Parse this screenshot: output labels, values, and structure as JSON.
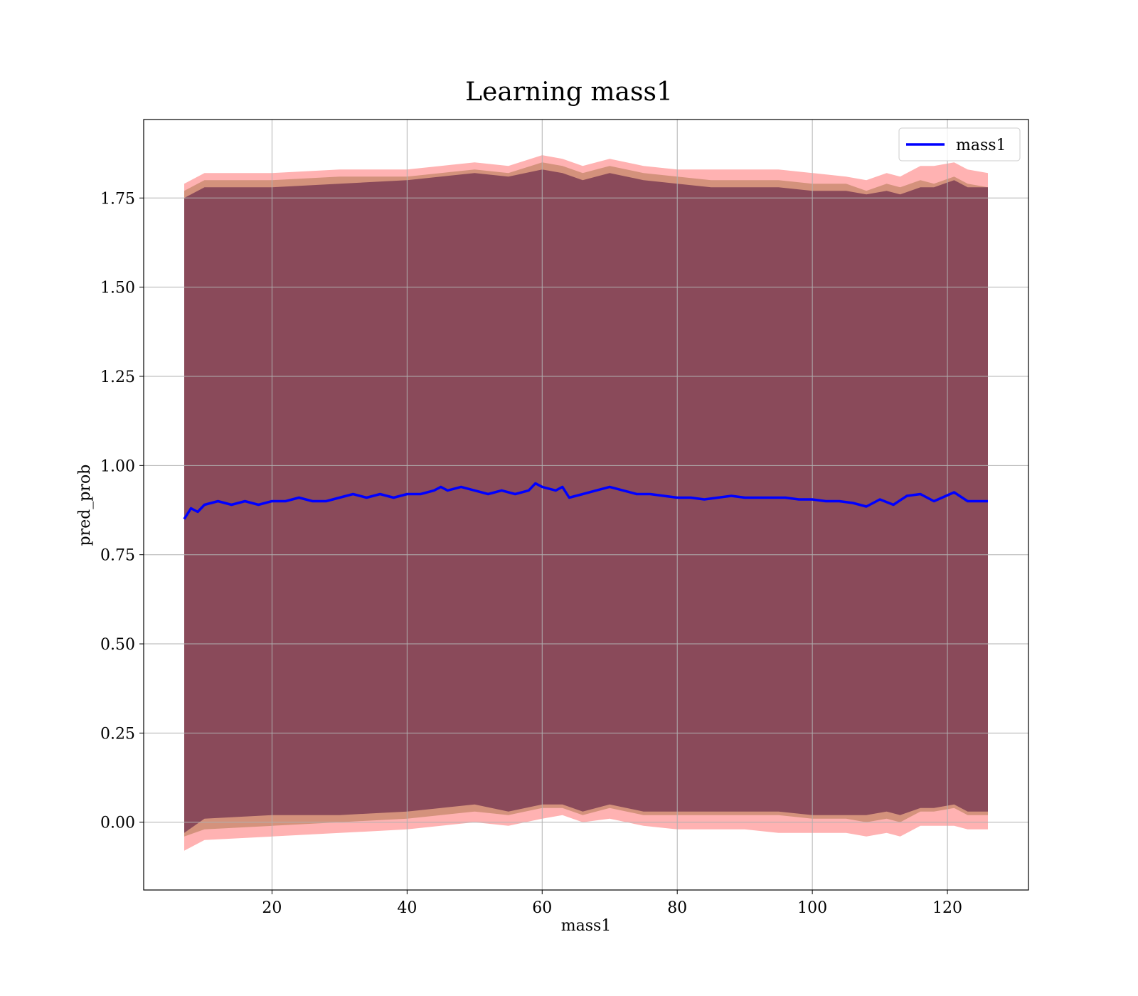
{
  "chart_data": {
    "type": "line",
    "title": "Learning mass1",
    "xlabel": "mass1",
    "ylabel": "pred_prob",
    "xlim": [
      1,
      132
    ],
    "ylim": [
      -0.19,
      1.97
    ],
    "grid": true,
    "legend_position": "top-right",
    "xticks": [
      20,
      40,
      60,
      80,
      100,
      120
    ],
    "xtick_labels": [
      "20",
      "40",
      "60",
      "80",
      "100",
      "120"
    ],
    "yticks": [
      0.0,
      0.25,
      0.5,
      0.75,
      1.0,
      1.25,
      1.5,
      1.75
    ],
    "ytick_labels": [
      "0.00",
      "0.25",
      "0.50",
      "0.75",
      "1.00",
      "1.25",
      "1.50",
      "1.75"
    ],
    "colors": {
      "line": "#0000ff",
      "band_outer": "#ff6666",
      "band_mid": "#b07850",
      "band_inner": "#8a4a5a"
    },
    "series": [
      {
        "name": "mass1",
        "x": [
          7,
          8,
          9,
          10,
          12,
          14,
          16,
          18,
          20,
          22,
          24,
          26,
          28,
          30,
          32,
          34,
          36,
          38,
          40,
          42,
          44,
          45,
          46,
          48,
          50,
          52,
          54,
          56,
          58,
          59,
          60,
          62,
          63,
          64,
          66,
          68,
          70,
          72,
          74,
          76,
          78,
          80,
          82,
          84,
          86,
          88,
          90,
          92,
          94,
          96,
          98,
          100,
          102,
          104,
          106,
          108,
          110,
          112,
          114,
          116,
          118,
          121,
          123,
          126
        ],
        "y": [
          0.85,
          0.88,
          0.87,
          0.89,
          0.9,
          0.89,
          0.9,
          0.89,
          0.9,
          0.9,
          0.91,
          0.9,
          0.9,
          0.91,
          0.92,
          0.91,
          0.92,
          0.91,
          0.92,
          0.92,
          0.93,
          0.94,
          0.93,
          0.94,
          0.93,
          0.92,
          0.93,
          0.92,
          0.93,
          0.95,
          0.94,
          0.93,
          0.94,
          0.91,
          0.92,
          0.93,
          0.94,
          0.93,
          0.92,
          0.92,
          0.915,
          0.91,
          0.91,
          0.905,
          0.91,
          0.915,
          0.91,
          0.91,
          0.91,
          0.91,
          0.905,
          0.905,
          0.9,
          0.9,
          0.895,
          0.885,
          0.905,
          0.89,
          0.915,
          0.92,
          0.9,
          0.925,
          0.9,
          0.9
        ]
      }
    ],
    "bands": [
      {
        "x": [
          7,
          10,
          20,
          30,
          40,
          45,
          50,
          55,
          60,
          63,
          66,
          70,
          75,
          80,
          85,
          90,
          95,
          100,
          105,
          108,
          111,
          113,
          116,
          118,
          121,
          123,
          126
        ],
        "upper": [
          1.79,
          1.82,
          1.82,
          1.83,
          1.83,
          1.84,
          1.85,
          1.84,
          1.87,
          1.86,
          1.84,
          1.86,
          1.84,
          1.83,
          1.83,
          1.83,
          1.83,
          1.82,
          1.81,
          1.8,
          1.82,
          1.81,
          1.84,
          1.84,
          1.85,
          1.83,
          1.82
        ],
        "lower": [
          -0.08,
          -0.05,
          -0.04,
          -0.03,
          -0.02,
          -0.01,
          0.0,
          -0.01,
          0.01,
          0.02,
          0.0,
          0.01,
          -0.01,
          -0.02,
          -0.02,
          -0.02,
          -0.03,
          -0.03,
          -0.03,
          -0.04,
          -0.03,
          -0.04,
          -0.01,
          -0.01,
          -0.01,
          -0.02,
          -0.02
        ]
      },
      {
        "x": [
          7,
          10,
          20,
          30,
          40,
          45,
          50,
          55,
          60,
          63,
          66,
          70,
          75,
          80,
          85,
          90,
          95,
          100,
          105,
          108,
          111,
          113,
          116,
          118,
          121,
          123,
          126
        ],
        "upper": [
          1.77,
          1.8,
          1.8,
          1.81,
          1.81,
          1.82,
          1.83,
          1.82,
          1.85,
          1.84,
          1.82,
          1.84,
          1.82,
          1.81,
          1.8,
          1.8,
          1.8,
          1.79,
          1.79,
          1.77,
          1.79,
          1.78,
          1.8,
          1.79,
          1.81,
          1.79,
          1.78
        ],
        "lower": [
          -0.04,
          -0.02,
          -0.01,
          0.0,
          0.01,
          0.02,
          0.03,
          0.02,
          0.04,
          0.04,
          0.02,
          0.04,
          0.02,
          0.02,
          0.02,
          0.02,
          0.02,
          0.01,
          0.01,
          0.0,
          0.01,
          0.0,
          0.03,
          0.03,
          0.04,
          0.02,
          0.02
        ]
      },
      {
        "x": [
          7,
          10,
          20,
          30,
          40,
          45,
          50,
          55,
          60,
          63,
          66,
          70,
          75,
          80,
          85,
          90,
          95,
          100,
          105,
          108,
          111,
          113,
          116,
          118,
          121,
          123,
          126
        ],
        "upper": [
          1.75,
          1.78,
          1.78,
          1.79,
          1.8,
          1.81,
          1.82,
          1.81,
          1.83,
          1.82,
          1.8,
          1.82,
          1.8,
          1.79,
          1.78,
          1.78,
          1.78,
          1.77,
          1.77,
          1.76,
          1.77,
          1.76,
          1.78,
          1.78,
          1.8,
          1.78,
          1.78
        ],
        "lower": [
          -0.03,
          0.01,
          0.02,
          0.02,
          0.03,
          0.04,
          0.05,
          0.03,
          0.05,
          0.05,
          0.03,
          0.05,
          0.03,
          0.03,
          0.03,
          0.03,
          0.03,
          0.02,
          0.02,
          0.02,
          0.03,
          0.02,
          0.04,
          0.04,
          0.05,
          0.03,
          0.03
        ]
      }
    ]
  }
}
